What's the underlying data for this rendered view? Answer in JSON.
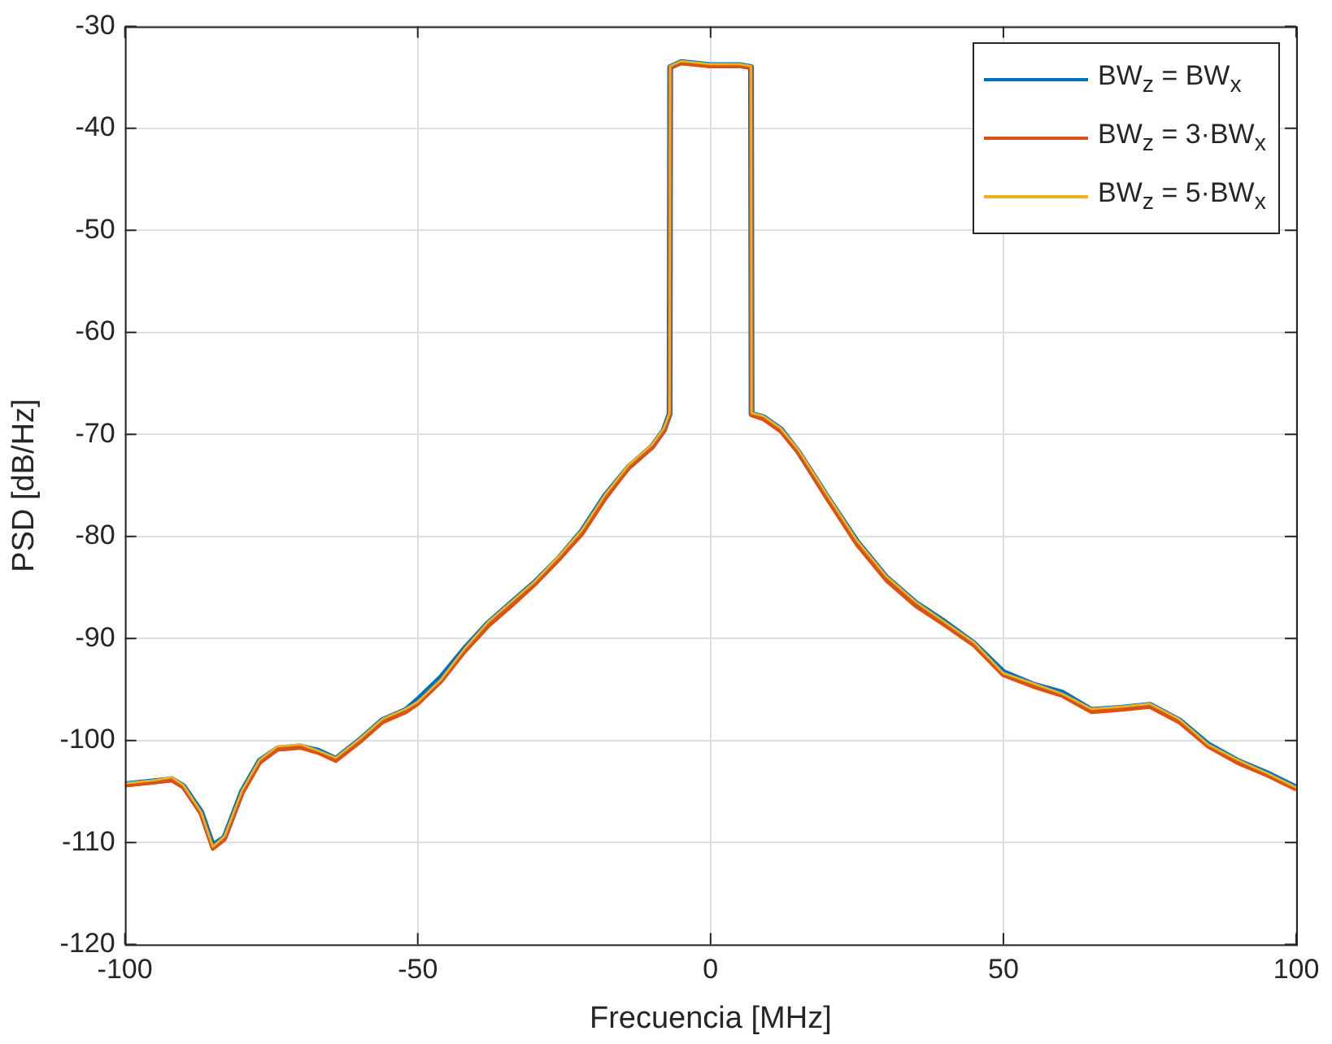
{
  "chart_data": {
    "type": "line",
    "xlabel": "Frecuencia [MHz]",
    "ylabel": "PSD [dB/Hz]",
    "x": [
      -100,
      -95,
      -92,
      -90,
      -87,
      -85,
      -83,
      -80,
      -77,
      -74,
      -70,
      -67,
      -64,
      -60,
      -56,
      -52,
      -50,
      -46,
      -42,
      -38,
      -34,
      -30,
      -26,
      -22,
      -18,
      -14,
      -10,
      -8,
      -7,
      -6.9,
      -5,
      0,
      5,
      6.9,
      7,
      9,
      12,
      15,
      20,
      25,
      30,
      35,
      40,
      45,
      50,
      55,
      60,
      65,
      70,
      75,
      80,
      85,
      90,
      95,
      100
    ],
    "series": [
      {
        "name": "BW$_{z}$ = BW$_{x}$",
        "color": "#0072bd",
        "values": [
          -104.3,
          -104,
          -103.8,
          -104.5,
          -107,
          -110.3,
          -109.5,
          -105,
          -102,
          -100.8,
          -100.6,
          -101,
          -101.8,
          -100,
          -98,
          -97,
          -96,
          -93.8,
          -91,
          -88.5,
          -86.5,
          -84.5,
          -82.2,
          -79.5,
          -76,
          -73.2,
          -71.2,
          -69.6,
          -68,
          -34,
          -33.5,
          -33.8,
          -33.8,
          -34,
          -68,
          -68.3,
          -69.5,
          -71.7,
          -76.2,
          -80.5,
          -84,
          -86.5,
          -88.4,
          -90.5,
          -93.3,
          -94.5,
          -95.3,
          -97,
          -96.8,
          -96.5,
          -98,
          -100.4,
          -102,
          -103.2,
          -104.6
        ]
      },
      {
        "name": "BW$_{z}$ = 3·BW$_{x}$",
        "color": "#d95319",
        "values": [
          -104.4,
          -104.1,
          -103.9,
          -104.6,
          -107.2,
          -110.6,
          -109.7,
          -105.2,
          -102.2,
          -100.9,
          -100.7,
          -101.2,
          -102,
          -100.2,
          -98.2,
          -97.2,
          -96.4,
          -94.2,
          -91.3,
          -88.8,
          -86.8,
          -84.7,
          -82.3,
          -79.8,
          -76.3,
          -73.3,
          -71.3,
          -69.7,
          -68.1,
          -34,
          -33.6,
          -33.9,
          -33.9,
          -34,
          -68.1,
          -68.5,
          -69.7,
          -71.8,
          -76.4,
          -80.8,
          -84.3,
          -86.8,
          -88.7,
          -90.7,
          -93.6,
          -94.7,
          -95.6,
          -97.2,
          -97,
          -96.7,
          -98.2,
          -100.6,
          -102.2,
          -103.4,
          -104.8
        ]
      },
      {
        "name": "BW$_{z}$ = 5·BW$_{x}$",
        "color": "#edb120",
        "values": [
          -104.2,
          -103.9,
          -103.6,
          -104.4,
          -107,
          -110.4,
          -109.4,
          -104.9,
          -101.9,
          -100.6,
          -100.4,
          -101,
          -101.7,
          -99.9,
          -97.9,
          -96.9,
          -96.2,
          -94,
          -91,
          -88.4,
          -86.4,
          -84.4,
          -82,
          -79.4,
          -75.9,
          -73,
          -71,
          -69.4,
          -67.9,
          -33.9,
          -33.4,
          -33.7,
          -33.7,
          -33.9,
          -67.9,
          -68.2,
          -69.4,
          -71.5,
          -76,
          -80.4,
          -83.9,
          -86.4,
          -88.4,
          -90.4,
          -93.4,
          -94.4,
          -95.4,
          -96.9,
          -96.7,
          -96.4,
          -97.9,
          -100.4,
          -101.9,
          -103.2,
          -104.6
        ]
      }
    ],
    "xlim": [
      -100,
      100
    ],
    "xticks": [
      -100,
      -50,
      0,
      50,
      100
    ],
    "ylim": [
      -120,
      -30
    ],
    "yticks": [
      -120,
      -110,
      -100,
      -90,
      -80,
      -70,
      -60,
      -50,
      -40,
      -30
    ],
    "grid": true,
    "legend": "top right",
    "line_style": "solid",
    "marker": "none"
  }
}
